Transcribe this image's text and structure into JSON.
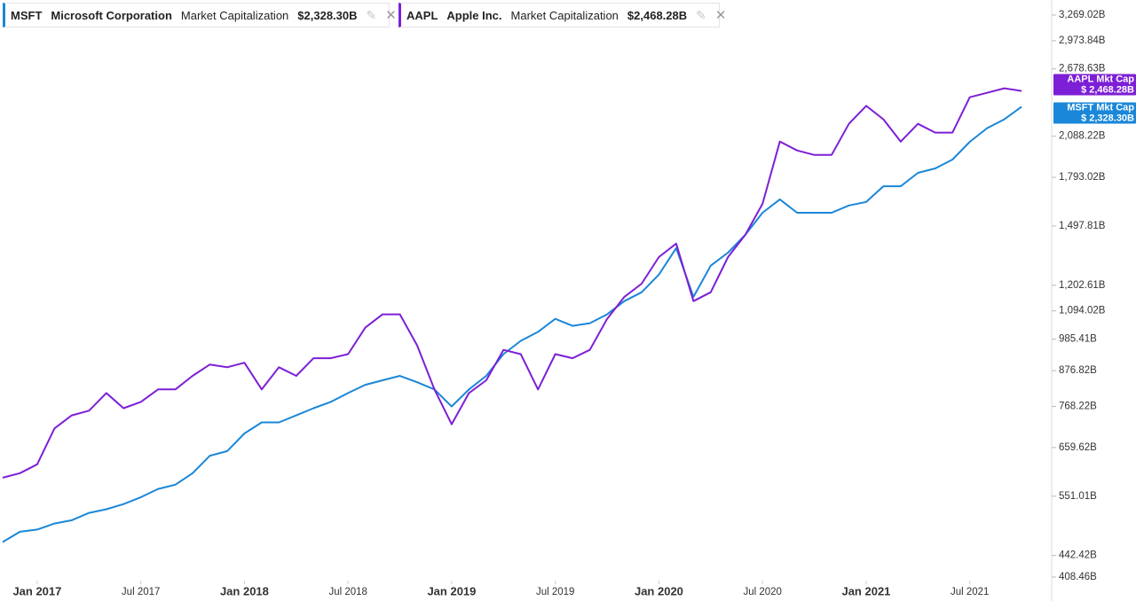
{
  "chart_data": {
    "type": "line",
    "log_scale": true,
    "grid": false,
    "x": [
      "2016-11",
      "2016-12",
      "2017-01",
      "2017-02",
      "2017-03",
      "2017-04",
      "2017-05",
      "2017-06",
      "2017-07",
      "2017-08",
      "2017-09",
      "2017-10",
      "2017-11",
      "2017-12",
      "2018-01",
      "2018-02",
      "2018-03",
      "2018-04",
      "2018-05",
      "2018-06",
      "2018-07",
      "2018-08",
      "2018-09",
      "2018-10",
      "2018-11",
      "2018-12",
      "2019-01",
      "2019-02",
      "2019-03",
      "2019-04",
      "2019-05",
      "2019-06",
      "2019-07",
      "2019-08",
      "2019-09",
      "2019-10",
      "2019-11",
      "2019-12",
      "2020-01",
      "2020-02",
      "2020-03",
      "2020-04",
      "2020-05",
      "2020-06",
      "2020-07",
      "2020-08",
      "2020-09",
      "2020-10",
      "2020-11",
      "2020-12",
      "2021-01",
      "2021-02",
      "2021-03",
      "2021-04",
      "2021-05",
      "2021-06",
      "2021-07",
      "2021-08",
      "2021-09",
      "2021-10"
    ],
    "xlim": [
      "2016-11",
      "2021-12"
    ],
    "xticks": [
      {
        "value": "2017-01",
        "label": "Jan 2017"
      },
      {
        "value": "2017-07",
        "label": "Jul 2017"
      },
      {
        "value": "2018-01",
        "label": "Jan 2018"
      },
      {
        "value": "2018-07",
        "label": "Jul 2018"
      },
      {
        "value": "2019-01",
        "label": "Jan 2019"
      },
      {
        "value": "2019-07",
        "label": "Jul 2019"
      },
      {
        "value": "2020-01",
        "label": "Jan 2020"
      },
      {
        "value": "2020-07",
        "label": "Jul 2020"
      },
      {
        "value": "2021-01",
        "label": "Jan 2021"
      },
      {
        "value": "2021-07",
        "label": "Jul 2021"
      }
    ],
    "ylim": [
      408.46,
      3269.02
    ],
    "yticks": [
      {
        "value": 408.46,
        "label": "408.46B"
      },
      {
        "value": 442.42,
        "label": "442.42B"
      },
      {
        "value": 551.01,
        "label": "551.01B"
      },
      {
        "value": 659.62,
        "label": "659.62B"
      },
      {
        "value": 768.22,
        "label": "768.22B"
      },
      {
        "value": 876.82,
        "label": "876.82B"
      },
      {
        "value": 985.41,
        "label": "985.41B"
      },
      {
        "value": 1094.02,
        "label": "1,094.02B"
      },
      {
        "value": 1202.61,
        "label": "1,202.61B"
      },
      {
        "value": 1497.81,
        "label": "1,497.81B"
      },
      {
        "value": 1793.02,
        "label": "1,793.02B"
      },
      {
        "value": 2088.22,
        "label": "2,088.22B"
      },
      {
        "value": 2678.63,
        "label": "2,678.63B"
      },
      {
        "value": 2973.84,
        "label": "2,973.84B"
      },
      {
        "value": 3269.02,
        "label": "3,269.02B"
      }
    ],
    "series": [
      {
        "name": "MSFT",
        "company": "Microsoft Corporation",
        "metric": "Market Capitalization",
        "latest": "$2,328.30B",
        "end_label": [
          "MSFT Mkt Cap",
          "$ 2,328.30B"
        ],
        "color": "#1a87d8",
        "values": [
          465,
          483,
          487,
          498,
          504,
          518,
          525,
          535,
          549,
          566,
          575,
          600,
          640,
          651,
          695,
          724,
          724,
          743,
          763,
          781,
          807,
          832,
          846,
          860,
          840,
          818,
          768,
          818,
          860,
          932,
          979,
          1012,
          1062,
          1035,
          1045,
          1080,
          1134,
          1172,
          1251,
          1380,
          1152,
          1293,
          1357,
          1449,
          1573,
          1653,
          1573,
          1573,
          1573,
          1616,
          1637,
          1735,
          1735,
          1823,
          1853,
          1915,
          2045,
          2151,
          2223,
          2328.3
        ]
      },
      {
        "name": "AAPL",
        "company": "Apple Inc.",
        "metric": "Market Capitalization",
        "latest": "$2,468.28B",
        "end_label": [
          "AAPL Mkt Cap",
          "$ 2,468.28B"
        ],
        "color": "#7d1fd6",
        "values": [
          590,
          600,
          620,
          708,
          743,
          756,
          807,
          763,
          781,
          818,
          818,
          860,
          897,
          888,
          903,
          818,
          888,
          860,
          918,
          918,
          932,
          1028,
          1080,
          1080,
          963,
          818,
          719,
          807,
          846,
          947,
          932,
          818,
          932,
          918,
          947,
          1062,
          1152,
          1210,
          1335,
          1403,
          1134,
          1172,
          1335,
          1449,
          1626,
          2047,
          1981,
          1948,
          1948,
          2186,
          2336,
          2223,
          2047,
          2186,
          2116,
          2116,
          2412,
          2452,
          2493,
          2468.28
        ]
      }
    ]
  }
}
